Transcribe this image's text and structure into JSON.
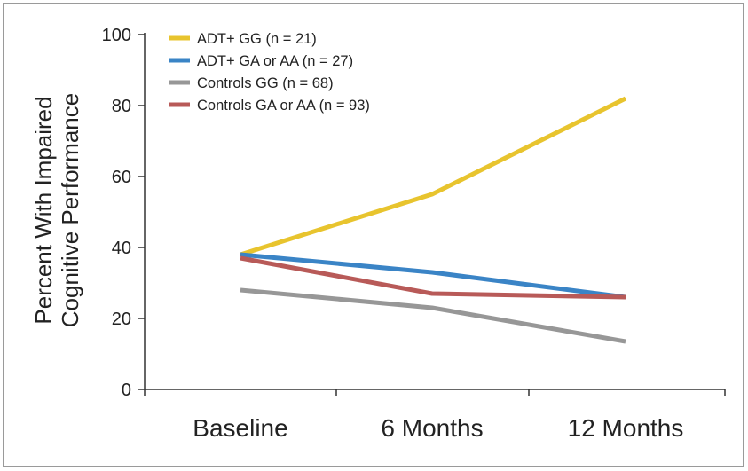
{
  "chart_data": {
    "type": "line",
    "categories": [
      "Baseline",
      "6 Months",
      "12 Months"
    ],
    "ylabel_lines": [
      "Percent With Impaired",
      "Cognitive Performance"
    ],
    "xlabel": "",
    "ylim": [
      0,
      100
    ],
    "yticks": [
      0,
      20,
      40,
      60,
      80,
      100
    ],
    "grid": false,
    "legend_position": "top-left",
    "series": [
      {
        "name": "ADT+ GG (n = 21)",
        "color": "#e8c42e",
        "values": [
          38,
          55,
          82
        ]
      },
      {
        "name": "ADT+ GA or AA (n = 27)",
        "color": "#3a84c6",
        "values": [
          38,
          33,
          26
        ]
      },
      {
        "name": "Controls GG (n = 68)",
        "color": "#979797",
        "values": [
          28,
          23,
          13.5
        ]
      },
      {
        "name": "Controls GA or AA (n = 93)",
        "color": "#b85a58",
        "values": [
          37,
          27,
          26
        ]
      }
    ]
  }
}
